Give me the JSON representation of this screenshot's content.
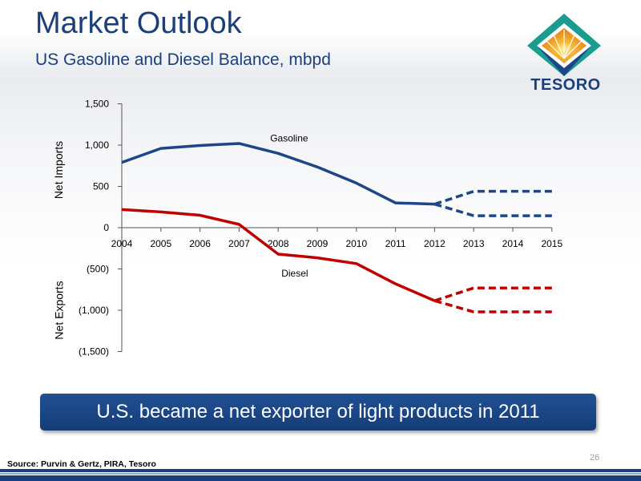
{
  "slide": {
    "title": "Market Outlook",
    "subtitle": "US Gasoline and Diesel Balance, mbpd",
    "callout": "U.S. became a net exporter of light products in 2011",
    "source": "Source: Purvin & Gertz, PIRA, Tesoro",
    "page_number": "26"
  },
  "logo": {
    "text": "TESORO"
  },
  "colors": {
    "title": "#1b3f7a",
    "gasoline": "#1d4587",
    "diesel": "#c00000",
    "callout": "#1a4686"
  },
  "chart_data": {
    "type": "line",
    "title": "",
    "xlabel": "",
    "ylabel_top": "Net Imports",
    "ylabel_bottom": "Net Exports",
    "ylim": [
      -1500,
      1500
    ],
    "y_ticks": [
      1500,
      1000,
      500,
      0,
      -500,
      -1000,
      -1500
    ],
    "y_tick_labels": [
      "1,500",
      "1,000",
      "500",
      "0",
      "(500)",
      "(1,000)",
      "(1,500)"
    ],
    "categories": [
      "2004",
      "2005",
      "2006",
      "2007",
      "2008",
      "2009",
      "2010",
      "2011",
      "2012",
      "2013",
      "2014",
      "2015"
    ],
    "grid": false,
    "legend": "none",
    "series": [
      {
        "name": "Gasoline",
        "style": "solid",
        "values": [
          790,
          960,
          995,
          1020,
          900,
          735,
          540,
          300,
          285,
          null,
          null,
          null
        ]
      },
      {
        "name": "",
        "style": "dashed",
        "values": [
          null,
          null,
          null,
          null,
          null,
          null,
          null,
          null,
          285,
          440,
          440,
          440
        ]
      },
      {
        "name": "",
        "style": "dashed",
        "values": [
          null,
          null,
          null,
          null,
          null,
          null,
          null,
          null,
          285,
          145,
          145,
          145
        ]
      },
      {
        "name": "Diesel",
        "style": "solid",
        "values": [
          220,
          190,
          150,
          40,
          -320,
          -365,
          -435,
          -680,
          -885,
          null,
          null,
          null
        ]
      },
      {
        "name": "",
        "style": "dashed",
        "values": [
          null,
          null,
          null,
          null,
          null,
          null,
          null,
          null,
          -885,
          -730,
          -730,
          -730
        ]
      },
      {
        "name": "",
        "style": "dashed",
        "values": [
          null,
          null,
          null,
          null,
          null,
          null,
          null,
          null,
          -885,
          -1020,
          -1020,
          -1020
        ]
      }
    ]
  }
}
